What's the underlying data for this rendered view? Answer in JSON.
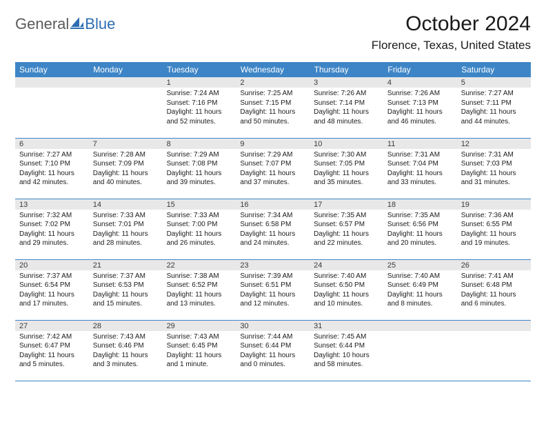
{
  "logo": {
    "word1": "General",
    "word2": "Blue"
  },
  "header": {
    "month_title": "October 2024",
    "location": "Florence, Texas, United States"
  },
  "calendar": {
    "day_names": [
      "Sunday",
      "Monday",
      "Tuesday",
      "Wednesday",
      "Thursday",
      "Friday",
      "Saturday"
    ],
    "header_bg": "#3d85c6",
    "header_fg": "#ffffff",
    "daynum_bg": "#e8e8e8",
    "border_color": "#3d85c6",
    "weeks": [
      [
        null,
        null,
        {
          "n": "1",
          "sunrise": "Sunrise: 7:24 AM",
          "sunset": "Sunset: 7:16 PM",
          "daylight": "Daylight: 11 hours and 52 minutes."
        },
        {
          "n": "2",
          "sunrise": "Sunrise: 7:25 AM",
          "sunset": "Sunset: 7:15 PM",
          "daylight": "Daylight: 11 hours and 50 minutes."
        },
        {
          "n": "3",
          "sunrise": "Sunrise: 7:26 AM",
          "sunset": "Sunset: 7:14 PM",
          "daylight": "Daylight: 11 hours and 48 minutes."
        },
        {
          "n": "4",
          "sunrise": "Sunrise: 7:26 AM",
          "sunset": "Sunset: 7:13 PM",
          "daylight": "Daylight: 11 hours and 46 minutes."
        },
        {
          "n": "5",
          "sunrise": "Sunrise: 7:27 AM",
          "sunset": "Sunset: 7:11 PM",
          "daylight": "Daylight: 11 hours and 44 minutes."
        }
      ],
      [
        {
          "n": "6",
          "sunrise": "Sunrise: 7:27 AM",
          "sunset": "Sunset: 7:10 PM",
          "daylight": "Daylight: 11 hours and 42 minutes."
        },
        {
          "n": "7",
          "sunrise": "Sunrise: 7:28 AM",
          "sunset": "Sunset: 7:09 PM",
          "daylight": "Daylight: 11 hours and 40 minutes."
        },
        {
          "n": "8",
          "sunrise": "Sunrise: 7:29 AM",
          "sunset": "Sunset: 7:08 PM",
          "daylight": "Daylight: 11 hours and 39 minutes."
        },
        {
          "n": "9",
          "sunrise": "Sunrise: 7:29 AM",
          "sunset": "Sunset: 7:07 PM",
          "daylight": "Daylight: 11 hours and 37 minutes."
        },
        {
          "n": "10",
          "sunrise": "Sunrise: 7:30 AM",
          "sunset": "Sunset: 7:05 PM",
          "daylight": "Daylight: 11 hours and 35 minutes."
        },
        {
          "n": "11",
          "sunrise": "Sunrise: 7:31 AM",
          "sunset": "Sunset: 7:04 PM",
          "daylight": "Daylight: 11 hours and 33 minutes."
        },
        {
          "n": "12",
          "sunrise": "Sunrise: 7:31 AM",
          "sunset": "Sunset: 7:03 PM",
          "daylight": "Daylight: 11 hours and 31 minutes."
        }
      ],
      [
        {
          "n": "13",
          "sunrise": "Sunrise: 7:32 AM",
          "sunset": "Sunset: 7:02 PM",
          "daylight": "Daylight: 11 hours and 29 minutes."
        },
        {
          "n": "14",
          "sunrise": "Sunrise: 7:33 AM",
          "sunset": "Sunset: 7:01 PM",
          "daylight": "Daylight: 11 hours and 28 minutes."
        },
        {
          "n": "15",
          "sunrise": "Sunrise: 7:33 AM",
          "sunset": "Sunset: 7:00 PM",
          "daylight": "Daylight: 11 hours and 26 minutes."
        },
        {
          "n": "16",
          "sunrise": "Sunrise: 7:34 AM",
          "sunset": "Sunset: 6:58 PM",
          "daylight": "Daylight: 11 hours and 24 minutes."
        },
        {
          "n": "17",
          "sunrise": "Sunrise: 7:35 AM",
          "sunset": "Sunset: 6:57 PM",
          "daylight": "Daylight: 11 hours and 22 minutes."
        },
        {
          "n": "18",
          "sunrise": "Sunrise: 7:35 AM",
          "sunset": "Sunset: 6:56 PM",
          "daylight": "Daylight: 11 hours and 20 minutes."
        },
        {
          "n": "19",
          "sunrise": "Sunrise: 7:36 AM",
          "sunset": "Sunset: 6:55 PM",
          "daylight": "Daylight: 11 hours and 19 minutes."
        }
      ],
      [
        {
          "n": "20",
          "sunrise": "Sunrise: 7:37 AM",
          "sunset": "Sunset: 6:54 PM",
          "daylight": "Daylight: 11 hours and 17 minutes."
        },
        {
          "n": "21",
          "sunrise": "Sunrise: 7:37 AM",
          "sunset": "Sunset: 6:53 PM",
          "daylight": "Daylight: 11 hours and 15 minutes."
        },
        {
          "n": "22",
          "sunrise": "Sunrise: 7:38 AM",
          "sunset": "Sunset: 6:52 PM",
          "daylight": "Daylight: 11 hours and 13 minutes."
        },
        {
          "n": "23",
          "sunrise": "Sunrise: 7:39 AM",
          "sunset": "Sunset: 6:51 PM",
          "daylight": "Daylight: 11 hours and 12 minutes."
        },
        {
          "n": "24",
          "sunrise": "Sunrise: 7:40 AM",
          "sunset": "Sunset: 6:50 PM",
          "daylight": "Daylight: 11 hours and 10 minutes."
        },
        {
          "n": "25",
          "sunrise": "Sunrise: 7:40 AM",
          "sunset": "Sunset: 6:49 PM",
          "daylight": "Daylight: 11 hours and 8 minutes."
        },
        {
          "n": "26",
          "sunrise": "Sunrise: 7:41 AM",
          "sunset": "Sunset: 6:48 PM",
          "daylight": "Daylight: 11 hours and 6 minutes."
        }
      ],
      [
        {
          "n": "27",
          "sunrise": "Sunrise: 7:42 AM",
          "sunset": "Sunset: 6:47 PM",
          "daylight": "Daylight: 11 hours and 5 minutes."
        },
        {
          "n": "28",
          "sunrise": "Sunrise: 7:43 AM",
          "sunset": "Sunset: 6:46 PM",
          "daylight": "Daylight: 11 hours and 3 minutes."
        },
        {
          "n": "29",
          "sunrise": "Sunrise: 7:43 AM",
          "sunset": "Sunset: 6:45 PM",
          "daylight": "Daylight: 11 hours and 1 minute."
        },
        {
          "n": "30",
          "sunrise": "Sunrise: 7:44 AM",
          "sunset": "Sunset: 6:44 PM",
          "daylight": "Daylight: 11 hours and 0 minutes."
        },
        {
          "n": "31",
          "sunrise": "Sunrise: 7:45 AM",
          "sunset": "Sunset: 6:44 PM",
          "daylight": "Daylight: 10 hours and 58 minutes."
        },
        null,
        null
      ]
    ]
  }
}
